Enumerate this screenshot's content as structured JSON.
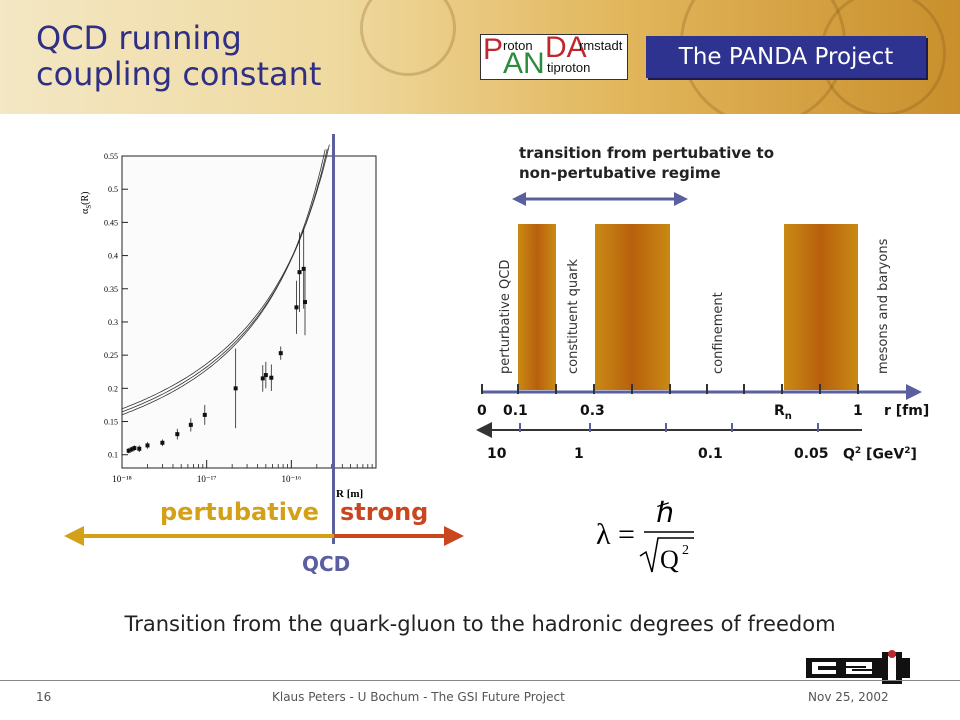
{
  "header": {
    "title_line1": "QCD running",
    "title_line2": "coupling constant",
    "project": "The PANDA Project",
    "logo": {
      "P": "P",
      "roton": "roton",
      "DA": "DA",
      "rmstadt": "rmstadt",
      "AN": "AN",
      "tiproton": "tiproton"
    }
  },
  "left_figure": {
    "y_axis_label": "α_S(R)",
    "x_axis_label": "R [m]",
    "label_pertubative": "pertubative",
    "label_strong": "strong",
    "label_qcd": "QCD"
  },
  "chart_data": {
    "type": "scatter",
    "xlabel": "R [m]",
    "ylabel": "αS(R)",
    "x_scale": "log",
    "xlim": [
      1e-18,
      1e-15
    ],
    "ylim": [
      0.08,
      0.55
    ],
    "x_tick_labels": [
      "10⁻¹⁸",
      "10⁻¹⁷",
      "10⁻¹⁶"
    ],
    "y_tick_labels": [
      "0.1",
      "0.15",
      "0.2",
      "0.25",
      "0.3",
      "0.35",
      "0.4",
      "0.45",
      "0.5",
      "0.55"
    ],
    "points": [
      {
        "x": 1.2e-18,
        "y": 0.106,
        "err": 0.004
      },
      {
        "x": 1.3e-18,
        "y": 0.108,
        "err": 0.004
      },
      {
        "x": 1.4e-18,
        "y": 0.11,
        "err": 0.004
      },
      {
        "x": 1.6e-18,
        "y": 0.109,
        "err": 0.005
      },
      {
        "x": 2e-18,
        "y": 0.114,
        "err": 0.005
      },
      {
        "x": 3e-18,
        "y": 0.118,
        "err": 0.005
      },
      {
        "x": 4.5e-18,
        "y": 0.131,
        "err": 0.008
      },
      {
        "x": 6.5e-18,
        "y": 0.145,
        "err": 0.01
      },
      {
        "x": 9.5e-18,
        "y": 0.16,
        "err": 0.015
      },
      {
        "x": 2.2e-17,
        "y": 0.2,
        "err": 0.06
      },
      {
        "x": 4.6e-17,
        "y": 0.215,
        "err": 0.02
      },
      {
        "x": 5e-17,
        "y": 0.22,
        "err": 0.02
      },
      {
        "x": 5.8e-17,
        "y": 0.216,
        "err": 0.02
      },
      {
        "x": 7.5e-17,
        "y": 0.253,
        "err": 0.01
      },
      {
        "x": 1.15e-16,
        "y": 0.322,
        "err": 0.04
      },
      {
        "x": 1.25e-16,
        "y": 0.375,
        "err": 0.06
      },
      {
        "x": 1.4e-16,
        "y": 0.38,
        "err": 0.06
      },
      {
        "x": 1.45e-16,
        "y": 0.33,
        "err": 0.05
      }
    ]
  },
  "scale": {
    "transition_text_1": "transition from pertubative to",
    "transition_text_2": "non-pertubative regime",
    "region_labels": [
      "perturbative QCD",
      "constituent quark",
      "confinement",
      "mesons and baryons"
    ],
    "r_ticks": [
      "0",
      "0.1",
      "0.3",
      "R",
      "1"
    ],
    "r_subscript": "n",
    "r_unit": "r [fm]",
    "q_ticks": [
      "10",
      "1",
      "0.1",
      "0.05"
    ],
    "q_unit_prefix": "Q",
    "q_unit_sup": "2",
    "q_unit_suffix": " [GeV",
    "q_unit_sup2": "2",
    "q_unit_end": "]"
  },
  "formula": {
    "lambda": "λ",
    "equals": "=",
    "hbar": "ℏ",
    "q": "Q",
    "sup": "2"
  },
  "caption": "Transition from the quark-gluon to the hadronic degrees of freedom",
  "footer": {
    "page": "16",
    "center": "Klaus Peters - U Bochum - The GSI Future Project",
    "date": "Nov 25, 2002"
  },
  "colors": {
    "title": "#2f2f86",
    "badge": "#2e3390",
    "bar": "#c98a14",
    "pertubative": "#d4a017",
    "strong": "#c8471f",
    "qcd": "#5a5fa0"
  }
}
